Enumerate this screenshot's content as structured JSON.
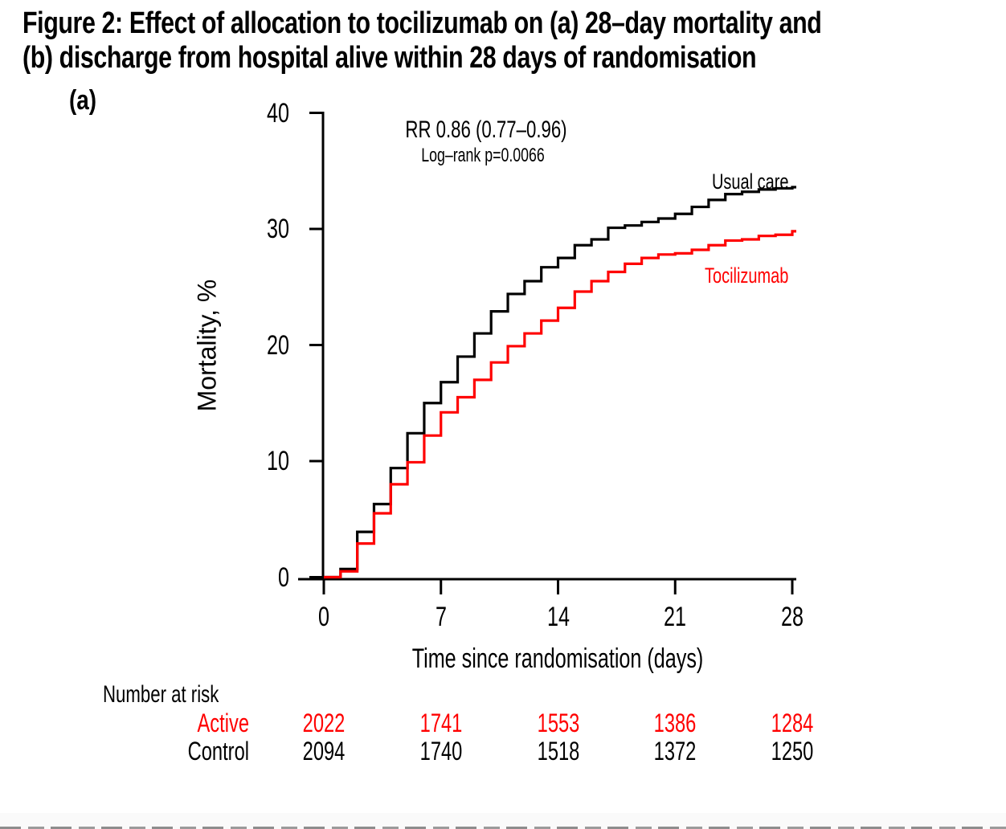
{
  "title": {
    "line1": "Figure 2: Effect of allocation to tocilizumab on (a) 28–day mortality and",
    "line2": "(b) discharge from hospital alive within 28 days of randomisation"
  },
  "panel_label": "(a)",
  "colors": {
    "usual_care": "#000000",
    "tocilizumab": "#ff0000",
    "axis": "#000000",
    "background": "#ffffff"
  },
  "chart_data": {
    "type": "line",
    "subtype": "kaplan-meier-step",
    "title": "",
    "xlabel": "Time since randomisation (days)",
    "ylabel": "Mortality, %",
    "xlim": [
      0,
      28
    ],
    "ylim": [
      0,
      40
    ],
    "x_ticks": [
      0,
      7,
      14,
      21,
      28
    ],
    "y_ticks": [
      0,
      10,
      20,
      30,
      40
    ],
    "grid": false,
    "legend_position": "inline-right",
    "annotations": {
      "effect": "RR 0.86 (0.77–0.96)",
      "logrank": "Log–rank p=0.0066"
    },
    "x": [
      0,
      1,
      2,
      3,
      4,
      5,
      6,
      7,
      8,
      9,
      10,
      11,
      12,
      13,
      14,
      15,
      16,
      17,
      18,
      19,
      20,
      21,
      22,
      23,
      24,
      25,
      26,
      27,
      28
    ],
    "series": [
      {
        "name": "Usual care",
        "color": "#000000",
        "values": [
          0,
          0.7,
          3.9,
          6.3,
          9.4,
          12.4,
          15.0,
          16.8,
          19.0,
          21.0,
          22.9,
          24.4,
          25.5,
          26.7,
          27.5,
          28.6,
          29.1,
          30.1,
          30.3,
          30.6,
          30.9,
          31.3,
          31.9,
          32.5,
          33.0,
          33.2,
          33.4,
          33.5,
          33.6
        ]
      },
      {
        "name": "Tocilizumab",
        "color": "#ff0000",
        "values": [
          0,
          0.5,
          2.9,
          5.5,
          8.0,
          9.9,
          12.2,
          14.2,
          15.5,
          17.0,
          18.5,
          19.9,
          21.0,
          22.1,
          23.2,
          24.6,
          25.5,
          26.3,
          27.0,
          27.5,
          27.8,
          27.9,
          28.2,
          28.6,
          29.0,
          29.1,
          29.4,
          29.5,
          29.8
        ]
      }
    ]
  },
  "risk_table": {
    "header": "Number at risk",
    "days": [
      0,
      7,
      14,
      21,
      28
    ],
    "rows": [
      {
        "label": "Active",
        "color": "#ff0000",
        "counts": [
          2022,
          1741,
          1553,
          1386,
          1284
        ]
      },
      {
        "label": "Control",
        "color": "#000000",
        "counts": [
          2094,
          1740,
          1518,
          1372,
          1250
        ]
      }
    ]
  }
}
